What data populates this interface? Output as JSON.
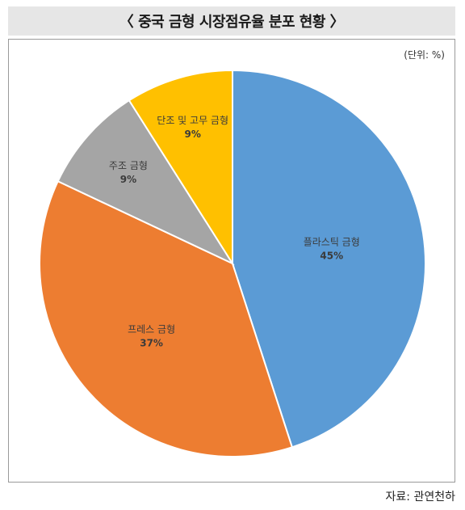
{
  "header": {
    "title": "〈 중국 금형 시장점유율 분포 현황 〉"
  },
  "unit": "(단위: %)",
  "source": "자료: 관연천하",
  "chart_data": {
    "type": "pie",
    "title": "〈 중국 금형 시장점유율 분포 현황 〉",
    "start_angle_deg": 0,
    "direction": "clockwise",
    "slices": [
      {
        "label": "플라스틱 금형",
        "value": 45,
        "value_label": "45%",
        "color": "#5b9bd5"
      },
      {
        "label": "프레스 금형",
        "value": 37,
        "value_label": "37%",
        "color": "#ed7d31"
      },
      {
        "label": "주조 금형",
        "value": 9,
        "value_label": "9%",
        "color": "#a5a5a5"
      },
      {
        "label": "단조 및 고무 금형",
        "value": 9,
        "value_label": "9%",
        "color": "#ffc000"
      }
    ]
  }
}
